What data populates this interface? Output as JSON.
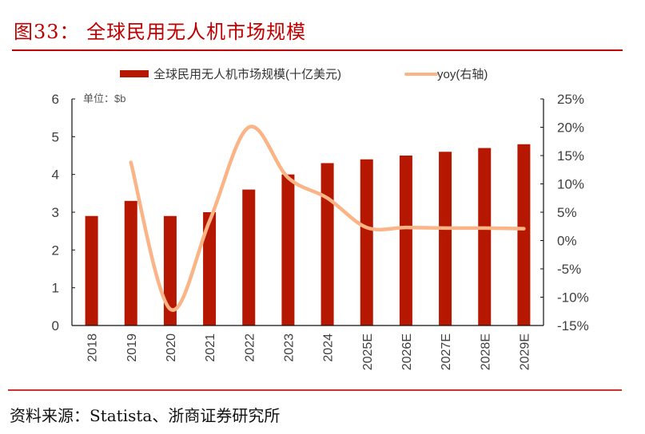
{
  "header": {
    "title": "图33：  全球民用无人机市场规模"
  },
  "footer": {
    "source": "资料来源：Statista、浙商证券研究所"
  },
  "colors": {
    "bar": "#b51700",
    "line": "#fbb486",
    "axis": "#111111",
    "tick_text": "#404040",
    "title": "#c00000"
  },
  "chart_data": {
    "type": "bar",
    "title": "全球民用无人机市场规模",
    "unit_label": "单位：$b",
    "categories": [
      "2018",
      "2019",
      "2020",
      "2021",
      "2022",
      "2023",
      "2024",
      "2025E",
      "2026E",
      "2027E",
      "2028E",
      "2029E"
    ],
    "series": [
      {
        "name": "全球民用无人机市场规模(十亿美元)",
        "type": "bar",
        "axis": "left",
        "values": [
          2.9,
          3.3,
          2.9,
          3.0,
          3.6,
          4.0,
          4.3,
          4.4,
          4.5,
          4.6,
          4.7,
          4.8
        ]
      },
      {
        "name": "yoy(右轴)",
        "type": "line",
        "axis": "right",
        "smooth": true,
        "values": [
          null,
          13.8,
          -12.1,
          3.4,
          20.0,
          11.1,
          7.5,
          2.3,
          2.3,
          2.2,
          2.2,
          2.1
        ]
      }
    ],
    "y_left": {
      "min": 0,
      "max": 6,
      "ticks": [
        "0",
        "1",
        "2",
        "3",
        "4",
        "5",
        "6"
      ]
    },
    "y_right": {
      "min": -15,
      "max": 25,
      "ticks": [
        "-15%",
        "-10%",
        "-5%",
        "0%",
        "5%",
        "10%",
        "15%",
        "20%",
        "25%"
      ]
    },
    "xlabel": "",
    "ylabel": "",
    "grid": false,
    "legend_position": "top"
  }
}
